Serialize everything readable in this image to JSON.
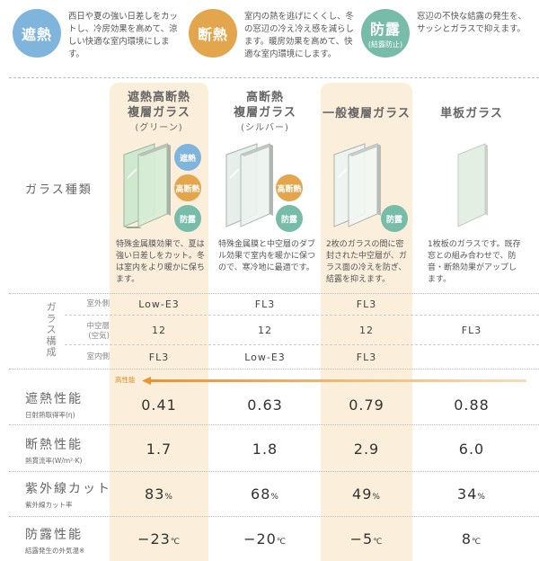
{
  "legend": [
    {
      "name": "shanetsu",
      "circle": "遮熱",
      "sub": "",
      "color": "#7fb4dd",
      "text": "西日や夏の強い日差しをカットし、冷房効果を高めて、涼しい快適な室内環境にします。"
    },
    {
      "name": "dannetsu",
      "circle": "断熱",
      "sub": "",
      "color": "#e3a64d",
      "text": "室内の熱を逃げにくくし、冬の窓辺の冷え冷え感を減らします。暖房効果を高めて、快適な室内環境にします。"
    },
    {
      "name": "boro",
      "circle": "防露",
      "sub": "(結露防止)",
      "color": "#77bca8",
      "text": "窓辺の不快な結露の発生を、サッシとガラスで抑えます。"
    }
  ],
  "row_labels": {
    "glass_type": "ガラス種類",
    "structure": "ガラス構成",
    "outdoor": "室外側",
    "hollow": "中空層\n(空気)",
    "indoor": "室内側"
  },
  "columns": [
    {
      "title1": "遮熱高断熱",
      "title2": "複層ガラス",
      "sub": "(グリーン)",
      "desc": "特殊金属膜効果で、夏は強い日差しをカット。冬は室内をより暖かに保ちます。",
      "badges": [
        "遮熱",
        "高断熱",
        "防露"
      ]
    },
    {
      "title1": "高断熱",
      "title2": "複層ガラス",
      "sub": "(シルバー)",
      "desc": "特殊金属膜と中空層のダブル効果で室内を暖かに保つので、寒冷地に最適です。",
      "badges": [
        "高断熱",
        "防露"
      ]
    },
    {
      "title1": "一般複層ガラス",
      "title2": "",
      "sub": "",
      "desc": "2枚のガラスの間に密封された中空層が、ガラス面の冷えを防ぎ、結露を抑えます。",
      "badges": [
        "防露"
      ]
    },
    {
      "title1": "単板ガラス",
      "title2": "",
      "sub": "",
      "desc": "1枚板のガラスです。既存窓との組み合わせで、防音・断熱効果がアップします。",
      "badges": []
    }
  ],
  "structure": {
    "outdoor": [
      "Low-E3",
      "FL3",
      "FL3"
    ],
    "hollow": [
      "12",
      "12",
      "12"
    ],
    "indoor": [
      "FL3",
      "Low-E3",
      "FL3"
    ],
    "single": "FL3"
  },
  "arrow_label": "高性能",
  "performance": [
    {
      "title": "遮熱性能",
      "sub": "日射熱取得率(η)",
      "values": [
        "0.41",
        "0.63",
        "0.79",
        "0.88"
      ],
      "unit": ""
    },
    {
      "title": "断熱性能",
      "sub": "熱貫流率(W/m²·K)",
      "values": [
        "1.7",
        "1.8",
        "2.9",
        "6.0"
      ],
      "unit": ""
    },
    {
      "title": "紫外線カット",
      "sub": "紫外線カット率",
      "values": [
        "83",
        "68",
        "49",
        "34"
      ],
      "unit": "%"
    },
    {
      "title": "防露性能",
      "sub": "結露発生の外気温※",
      "values": [
        "−23",
        "−20",
        "−5",
        "8"
      ],
      "unit": "℃"
    }
  ]
}
